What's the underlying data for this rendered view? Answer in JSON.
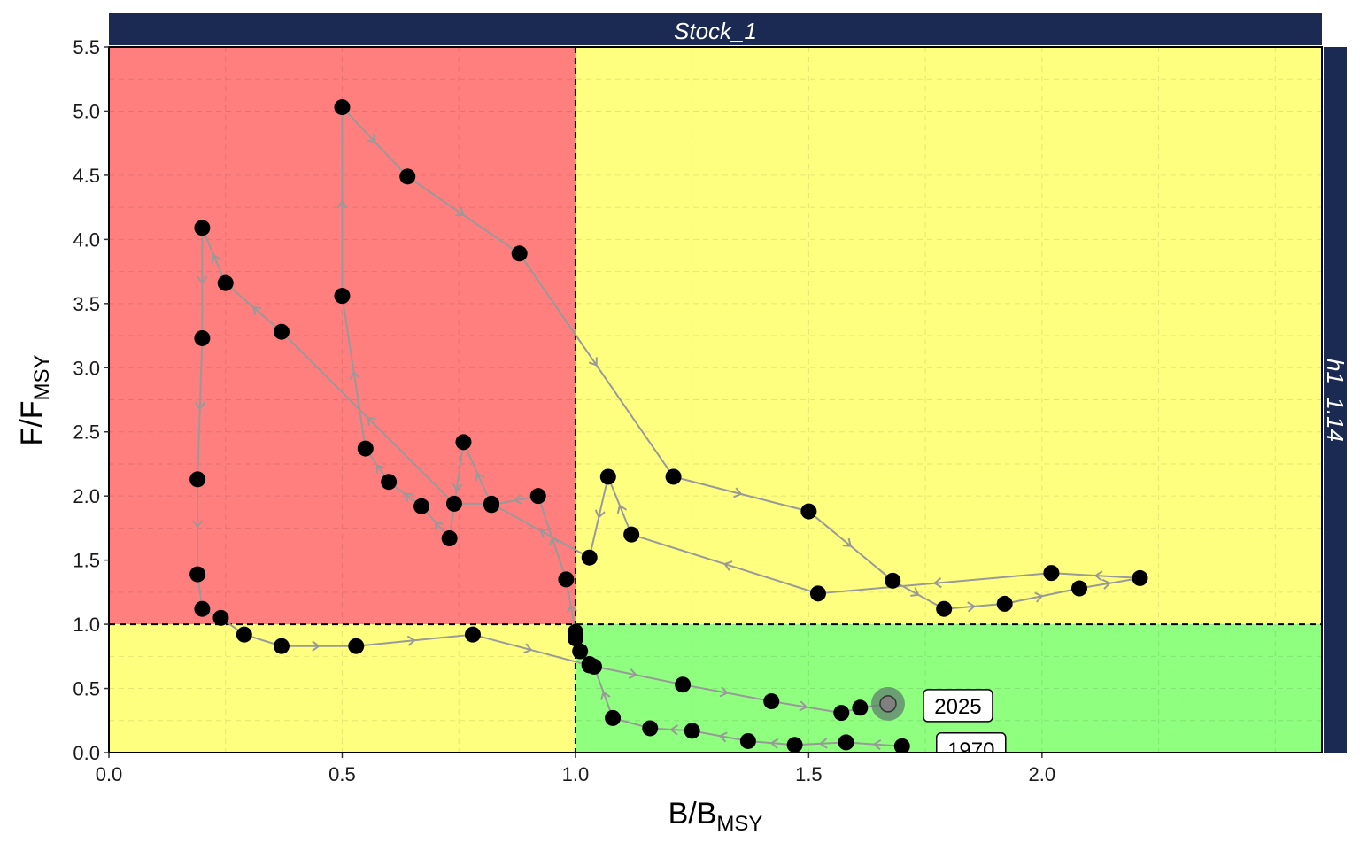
{
  "colors": {
    "overfished_overfishing": "#ff7f7f",
    "caution": "#ffff7f",
    "healthy": "#8fff7f",
    "strip": "#1b2a52",
    "points": "#000000",
    "trajectory": "#999999",
    "current_point": "#5f7f6f"
  },
  "panel": {
    "top_strip": "Stock_1",
    "right_strip": "h1_1.14"
  },
  "chart_data": {
    "type": "scatter",
    "xlabel": "B/B",
    "xlabel_sub": "MSY",
    "ylabel": "F/F",
    "ylabel_sub": "MSY",
    "xlim": [
      0,
      2.6
    ],
    "ylim": [
      0,
      5.5
    ],
    "x_ticks": [
      0.0,
      0.5,
      1.0,
      1.5,
      2.0
    ],
    "x_tick_labels": [
      "0.0",
      "0.5",
      "1.0",
      "1.5",
      "2.0"
    ],
    "y_ticks": [
      0.0,
      0.5,
      1.0,
      1.5,
      2.0,
      2.5,
      3.0,
      3.5,
      4.0,
      4.5,
      5.0,
      5.5
    ],
    "y_tick_labels": [
      "0.0",
      "0.5",
      "1.0",
      "1.5",
      "2.0",
      "2.5",
      "3.0",
      "3.5",
      "4.0",
      "4.5",
      "5.0",
      "5.5"
    ],
    "grid": true,
    "reference_lines": {
      "x": 1.0,
      "y": 1.0
    },
    "start_label": "1970",
    "end_label": "2025",
    "trajectory": [
      {
        "x": 1.7,
        "y": 0.05
      },
      {
        "x": 1.58,
        "y": 0.08
      },
      {
        "x": 1.47,
        "y": 0.06
      },
      {
        "x": 1.37,
        "y": 0.09
      },
      {
        "x": 1.25,
        "y": 0.17
      },
      {
        "x": 1.16,
        "y": 0.19
      },
      {
        "x": 1.08,
        "y": 0.27
      },
      {
        "x": 1.04,
        "y": 0.67
      },
      {
        "x": 1.03,
        "y": 0.69
      },
      {
        "x": 1.01,
        "y": 0.79
      },
      {
        "x": 1.0,
        "y": 0.89
      },
      {
        "x": 1.0,
        "y": 0.94
      },
      {
        "x": 0.98,
        "y": 1.35
      },
      {
        "x": 0.92,
        "y": 2.0
      },
      {
        "x": 0.82,
        "y": 1.93
      },
      {
        "x": 0.76,
        "y": 2.42
      },
      {
        "x": 0.73,
        "y": 1.67
      },
      {
        "x": 0.67,
        "y": 1.92
      },
      {
        "x": 0.6,
        "y": 2.11
      },
      {
        "x": 0.55,
        "y": 2.37
      },
      {
        "x": 0.5,
        "y": 3.56
      },
      {
        "x": 0.5,
        "y": 5.03
      },
      {
        "x": 0.64,
        "y": 4.49
      },
      {
        "x": 0.88,
        "y": 3.89
      },
      {
        "x": 1.21,
        "y": 2.15
      },
      {
        "x": 1.5,
        "y": 1.88
      },
      {
        "x": 1.68,
        "y": 1.34
      },
      {
        "x": 1.79,
        "y": 1.12
      },
      {
        "x": 1.92,
        "y": 1.16
      },
      {
        "x": 2.08,
        "y": 1.28
      },
      {
        "x": 2.21,
        "y": 1.36
      },
      {
        "x": 2.02,
        "y": 1.4
      },
      {
        "x": 1.52,
        "y": 1.24
      },
      {
        "x": 1.12,
        "y": 1.7
      },
      {
        "x": 1.07,
        "y": 2.15
      },
      {
        "x": 1.03,
        "y": 1.52
      },
      {
        "x": 0.82,
        "y": 1.94
      },
      {
        "x": 0.74,
        "y": 1.94
      },
      {
        "x": 0.37,
        "y": 3.28
      },
      {
        "x": 0.25,
        "y": 3.66
      },
      {
        "x": 0.2,
        "y": 4.09
      },
      {
        "x": 0.2,
        "y": 3.23
      },
      {
        "x": 0.19,
        "y": 2.13
      },
      {
        "x": 0.19,
        "y": 1.39
      },
      {
        "x": 0.2,
        "y": 1.12
      },
      {
        "x": 0.24,
        "y": 1.05
      },
      {
        "x": 0.29,
        "y": 0.92
      },
      {
        "x": 0.37,
        "y": 0.83
      },
      {
        "x": 0.53,
        "y": 0.83
      },
      {
        "x": 0.78,
        "y": 0.92
      },
      {
        "x": 1.03,
        "y": 0.68
      },
      {
        "x": 1.23,
        "y": 0.53
      },
      {
        "x": 1.42,
        "y": 0.4
      },
      {
        "x": 1.57,
        "y": 0.31
      },
      {
        "x": 1.61,
        "y": 0.35
      },
      {
        "x": 1.67,
        "y": 0.38
      }
    ]
  }
}
